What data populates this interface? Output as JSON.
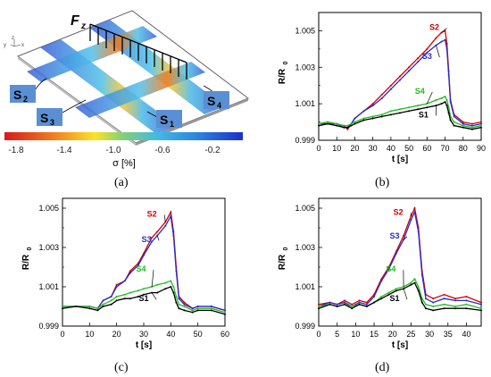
{
  "panel_a": {
    "force_label": "F",
    "force_sub": "z",
    "sensors": [
      {
        "id": "s2",
        "label": "S",
        "sub": "2"
      },
      {
        "id": "s3",
        "label": "S",
        "sub": "3"
      },
      {
        "id": "s1",
        "label": "S",
        "sub": "1"
      },
      {
        "id": "s4",
        "label": "S",
        "sub": "4"
      }
    ],
    "colorbar": {
      "ticks": [
        "-1.8",
        "-1.4",
        "-1.0",
        "-0.6",
        "-0.2"
      ],
      "label": "σ [%]",
      "colors": [
        "#d7191c",
        "#f07a1e",
        "#fbe324",
        "#7fd07a",
        "#3fb8e8",
        "#2b7fe0",
        "#1b2fc9"
      ]
    },
    "axis_labels": {
      "y": "y",
      "z": "z",
      "x": "x"
    }
  },
  "captions": {
    "a": "(a)",
    "b": "(b)",
    "c": "(c)",
    "d": "(d)"
  },
  "colors": {
    "S1": "#000000",
    "S2": "#cc0000",
    "S3": "#2a2acc",
    "S4": "#22bb22"
  },
  "chart_data": [
    {
      "id": "b",
      "type": "line",
      "xlabel": "t [s]",
      "ylabel": "R/R",
      "ylabel_sub": "0",
      "xlim": [
        0,
        90
      ],
      "ylim": [
        0.999,
        1.006
      ],
      "xticks": [
        0,
        10,
        20,
        30,
        40,
        50,
        60,
        70,
        80,
        90
      ],
      "yticks": [
        0.999,
        1.001,
        1.003,
        1.005
      ],
      "ytick_labels": [
        "0.999",
        "1.001",
        "1.003",
        "1.005"
      ],
      "series": [
        {
          "name": "S2",
          "x": [
            0,
            5,
            10,
            14,
            16,
            18,
            20,
            25,
            30,
            35,
            40,
            45,
            50,
            55,
            60,
            65,
            68,
            70,
            71,
            72,
            73,
            75,
            80,
            85,
            90
          ],
          "values": [
            0.9999,
            1.0,
            0.9999,
            0.9998,
            0.9996,
            0.9999,
            1.0002,
            1.0006,
            1.001,
            1.0015,
            1.002,
            1.0025,
            1.003,
            1.0035,
            1.004,
            1.0046,
            1.0049,
            1.005,
            1.0043,
            1.0028,
            1.0012,
            1.0004,
            1.0,
            0.9999,
            1.0
          ]
        },
        {
          "name": "S3",
          "x": [
            0,
            5,
            10,
            14,
            16,
            18,
            20,
            25,
            30,
            35,
            40,
            45,
            50,
            55,
            60,
            65,
            68,
            70,
            71,
            72,
            73,
            75,
            80,
            85,
            90
          ],
          "values": [
            0.9999,
            0.9999,
            0.9999,
            0.9997,
            0.9997,
            0.9999,
            1.0002,
            1.0006,
            1.0009,
            1.0013,
            1.0018,
            1.0023,
            1.0028,
            1.0033,
            1.0038,
            1.0042,
            1.0044,
            1.0045,
            1.004,
            1.0026,
            1.0011,
            1.0003,
            0.9999,
            0.9998,
            0.9999
          ]
        },
        {
          "name": "S4",
          "x": [
            0,
            5,
            10,
            14,
            16,
            18,
            20,
            25,
            30,
            35,
            40,
            45,
            50,
            55,
            60,
            65,
            68,
            70,
            71,
            72,
            73,
            75,
            80,
            85,
            90
          ],
          "values": [
            0.9999,
            1.0,
            0.9999,
            0.9998,
            0.9998,
            0.9999,
            1.0,
            1.0002,
            1.0003,
            1.0004,
            1.0006,
            1.0007,
            1.0008,
            1.0009,
            1.001,
            1.0012,
            1.0013,
            1.0014,
            1.0012,
            1.0008,
            1.0003,
            1.0,
            0.9998,
            0.9997,
            0.9998
          ]
        },
        {
          "name": "S1",
          "x": [
            0,
            5,
            10,
            14,
            16,
            18,
            20,
            25,
            30,
            35,
            40,
            45,
            50,
            55,
            60,
            65,
            68,
            70,
            71,
            72,
            73,
            75,
            80,
            85,
            90
          ],
          "values": [
            0.9998,
            0.9999,
            0.9998,
            0.9997,
            0.9997,
            0.9998,
            0.9999,
            1.0001,
            1.0002,
            1.0003,
            1.0004,
            1.0005,
            1.0006,
            1.0007,
            1.0008,
            1.0009,
            1.001,
            1.0011,
            1.0009,
            1.0005,
            1.0001,
            0.9998,
            0.9997,
            0.9996,
            0.9997
          ]
        }
      ],
      "annotations": [
        {
          "series": "S2",
          "text": "S2",
          "at": [
            67,
            1.0052
          ]
        },
        {
          "series": "S3",
          "text": "S3",
          "at": [
            63,
            1.0036
          ]
        },
        {
          "series": "S4",
          "text": "S4",
          "at": [
            59,
            1.0017
          ]
        },
        {
          "series": "S1",
          "text": "S1",
          "at": [
            61,
            1.0004
          ]
        }
      ]
    },
    {
      "id": "c",
      "type": "line",
      "xlabel": "t [s]",
      "ylabel": "R/R",
      "ylabel_sub": "0",
      "xlim": [
        0,
        60
      ],
      "ylim": [
        0.999,
        1.0055
      ],
      "xticks": [
        0,
        10,
        20,
        30,
        40,
        50,
        60
      ],
      "yticks": [
        0.999,
        1.001,
        1.003,
        1.005
      ],
      "ytick_labels": [
        "0.999",
        "1.001",
        "1.003",
        "1.005"
      ],
      "series": [
        {
          "name": "S2",
          "x": [
            0,
            5,
            10,
            13,
            15,
            18,
            20,
            23,
            25,
            28,
            30,
            33,
            35,
            38,
            40,
            41,
            42,
            43,
            45,
            48,
            50,
            55,
            60
          ],
          "values": [
            1.0,
            1.0,
            1.0,
            0.9999,
            1.0003,
            1.0005,
            1.0011,
            1.0013,
            1.0018,
            1.0022,
            1.0027,
            1.0035,
            1.0038,
            1.0043,
            1.0048,
            1.0038,
            1.002,
            1.0005,
            1.0002,
            0.9999,
            1.0,
            1.0,
            0.9998
          ]
        },
        {
          "name": "S3",
          "x": [
            0,
            5,
            10,
            13,
            15,
            18,
            20,
            23,
            25,
            28,
            30,
            33,
            35,
            38,
            40,
            41,
            42,
            43,
            45,
            48,
            50,
            55,
            60
          ],
          "values": [
            1.0,
            1.0,
            1.0,
            0.9999,
            1.0003,
            1.0005,
            1.001,
            1.0013,
            1.0017,
            1.0021,
            1.0026,
            1.0033,
            1.0036,
            1.0041,
            1.0046,
            1.0036,
            1.0018,
            1.0004,
            1.0001,
            0.9999,
            1.0,
            1.0,
            0.9998
          ]
        },
        {
          "name": "S4",
          "x": [
            0,
            5,
            10,
            13,
            15,
            18,
            20,
            23,
            25,
            28,
            30,
            33,
            35,
            38,
            40,
            41,
            42,
            43,
            45,
            48,
            50,
            55,
            60
          ],
          "values": [
            1.0,
            1.0,
            1.0,
            0.9999,
            1.0001,
            1.0003,
            1.0005,
            1.0006,
            1.0007,
            1.0008,
            1.0009,
            1.001,
            1.0011,
            1.0012,
            1.0013,
            1.001,
            1.0005,
            1.0001,
            1.0,
            0.9998,
            0.9999,
            0.9999,
            0.9997
          ]
        },
        {
          "name": "S1",
          "x": [
            0,
            5,
            10,
            13,
            15,
            18,
            20,
            23,
            25,
            28,
            30,
            33,
            35,
            38,
            40,
            41,
            42,
            43,
            45,
            48,
            50,
            55,
            60
          ],
          "values": [
            0.9999,
            1.0,
            0.9999,
            0.9998,
            1.0,
            1.0001,
            1.0003,
            1.0004,
            1.0004,
            1.0005,
            1.0006,
            1.0007,
            1.0007,
            1.0009,
            1.001,
            1.0007,
            1.0002,
            0.9999,
            0.9998,
            0.9997,
            0.9998,
            0.9998,
            0.9996
          ]
        }
      ],
      "annotations": [
        {
          "series": "S2",
          "text": "S2",
          "at": [
            35,
            1.0047
          ]
        },
        {
          "series": "S3",
          "text": "S3",
          "at": [
            33,
            1.0034
          ]
        },
        {
          "series": "S4",
          "text": "S4",
          "at": [
            31,
            1.0019
          ]
        },
        {
          "series": "S1",
          "text": "S1",
          "at": [
            32,
            1.0004
          ]
        }
      ]
    },
    {
      "id": "d",
      "type": "line",
      "xlabel": "t [s]",
      "ylabel": "R/R",
      "ylabel_sub": "0",
      "xlim": [
        0,
        44
      ],
      "ylim": [
        0.999,
        1.0055
      ],
      "xticks": [
        0,
        5,
        10,
        15,
        20,
        25,
        30,
        35,
        40
      ],
      "yticks": [
        0.999,
        1.001,
        1.003,
        1.005
      ],
      "ytick_labels": [
        "0.999",
        "1.001",
        "1.003",
        "1.005"
      ],
      "series": [
        {
          "name": "S2",
          "x": [
            0,
            3,
            5,
            7,
            9,
            11,
            13,
            15,
            17,
            19,
            21,
            23,
            25,
            26,
            27,
            28,
            29,
            31,
            34,
            37,
            40,
            44
          ],
          "values": [
            1.0001,
            1.0002,
            1.0001,
            1.0003,
            1.0001,
            1.0003,
            1.0002,
            1.0006,
            1.0014,
            1.002,
            1.0028,
            1.0036,
            1.0046,
            1.005,
            1.004,
            1.0018,
            1.0006,
            1.0004,
            1.0006,
            1.0004,
            1.0005,
            1.0002
          ]
        },
        {
          "name": "S3",
          "x": [
            0,
            3,
            5,
            7,
            9,
            11,
            13,
            15,
            17,
            19,
            21,
            23,
            25,
            26,
            27,
            28,
            29,
            31,
            34,
            37,
            40,
            44
          ],
          "values": [
            1.0,
            1.0002,
            1.0001,
            1.0002,
            1.0,
            1.0002,
            1.0001,
            1.0005,
            1.0013,
            1.0019,
            1.0027,
            1.0034,
            1.0044,
            1.0048,
            1.0038,
            1.0016,
            1.0004,
            1.0002,
            1.0004,
            1.0003,
            1.0003,
            1.0001
          ]
        },
        {
          "name": "S4",
          "x": [
            0,
            3,
            5,
            7,
            9,
            11,
            13,
            15,
            17,
            19,
            21,
            23,
            25,
            26,
            27,
            28,
            29,
            31,
            34,
            37,
            40,
            44
          ],
          "values": [
            1.0,
            1.0001,
            1.0,
            1.0001,
            1.0,
            1.0001,
            1.0,
            1.0002,
            1.0005,
            1.0007,
            1.0009,
            1.001,
            1.0012,
            1.0014,
            1.001,
            1.0004,
            1.0001,
            1.0,
            1.0001,
            1.0,
            1.0001,
            0.9999
          ]
        },
        {
          "name": "S1",
          "x": [
            0,
            3,
            5,
            7,
            9,
            11,
            13,
            15,
            17,
            19,
            21,
            23,
            25,
            26,
            27,
            28,
            29,
            31,
            34,
            37,
            40,
            44
          ],
          "values": [
            0.9999,
            1.0001,
            1.0,
            1.0001,
            0.9999,
            1.0001,
            1.0,
            1.0002,
            1.0004,
            1.0006,
            1.0008,
            1.0009,
            1.0011,
            1.0012,
            1.0008,
            1.0002,
            0.9999,
            0.9998,
            0.9999,
            0.9999,
            0.9999,
            0.9998
          ]
        }
      ],
      "annotations": [
        {
          "series": "S2",
          "text": "S2",
          "at": [
            23,
            1.0048
          ]
        },
        {
          "series": "S3",
          "text": "S3",
          "at": [
            22,
            1.0036
          ]
        },
        {
          "series": "S4",
          "text": "S4",
          "at": [
            21,
            1.0019
          ]
        },
        {
          "series": "S1",
          "text": "S1",
          "at": [
            22,
            1.0004
          ]
        }
      ]
    }
  ]
}
